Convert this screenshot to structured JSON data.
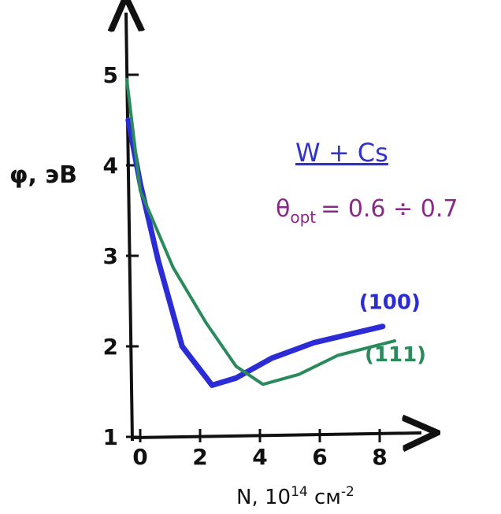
{
  "chart_data": {
    "type": "line",
    "y_label": "φ, эВ",
    "x_label": {
      "parts": [
        {
          "text": "N, 10"
        },
        {
          "text": "14",
          "sup": true
        },
        {
          "text": " см"
        },
        {
          "text": "-2",
          "sup": true
        }
      ]
    },
    "annotations": [
      {
        "text": "W + Cs"
      },
      {
        "text": "θ",
        "sub": "opt",
        "rest": "= 0.6 ÷ 0.7"
      }
    ],
    "xlim": [
      -0.5,
      9.3
    ],
    "ylim": [
      1,
      5.7
    ],
    "xticks": [
      0,
      2,
      4,
      6,
      8
    ],
    "yticks": [
      1,
      2,
      3,
      4,
      5
    ],
    "series": [
      {
        "name": "(100)",
        "color": "#2c2cd6",
        "x": [
          -0.4,
          0,
          0.6,
          1.4,
          2.4,
          3.2,
          4.4,
          5.8,
          8.1
        ],
        "values": [
          4.5,
          3.8,
          2.95,
          2.0,
          1.57,
          1.65,
          1.87,
          2.04,
          2.22
        ]
      },
      {
        "name": "(111)",
        "color": "#2a8a5c",
        "x": [
          -0.45,
          0,
          1.1,
          2.2,
          3.2,
          4.1,
          5.3,
          6.6,
          8.5
        ],
        "values": [
          4.95,
          3.72,
          2.87,
          2.26,
          1.78,
          1.58,
          1.69,
          1.9,
          2.06
        ]
      }
    ]
  }
}
